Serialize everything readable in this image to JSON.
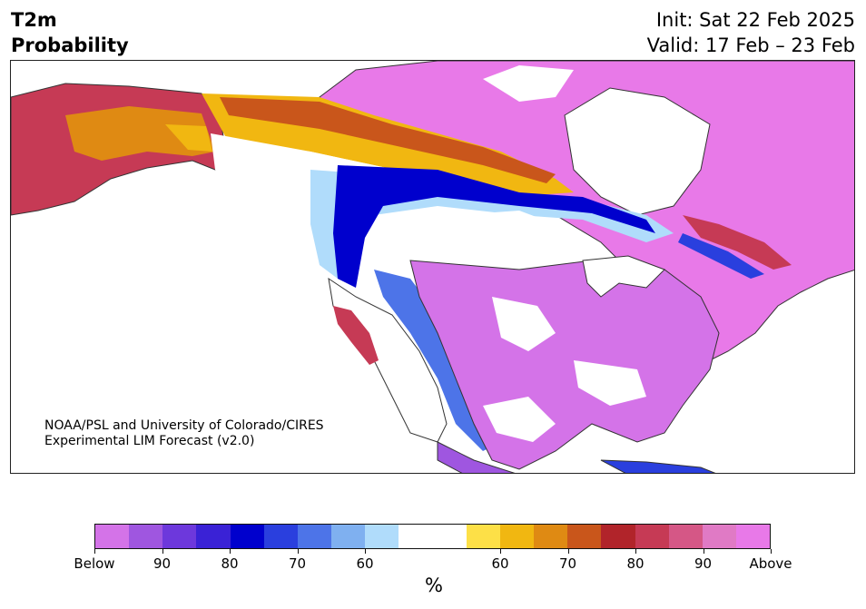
{
  "header": {
    "title_line1": "T2m",
    "title_line2": "Probability",
    "init_label": "Init: Sat 22 Feb 2025",
    "valid_label": "Valid: 17 Feb – 23 Feb"
  },
  "map": {
    "credit_line1": "NOAA/PSL and University of Colorado/CIRES",
    "credit_line2": "Experimental LIM Forecast (v2.0)",
    "colors": {
      "above_outer": "#e879e8",
      "below_outer": "#d37ee8",
      "land_outline": "#333333"
    }
  },
  "colorbar": {
    "colors": [
      "#d473e8",
      "#9f56e0",
      "#6d38dc",
      "#3a22d6",
      "#0000cd",
      "#2a3fde",
      "#4d74e8",
      "#7fb0f0",
      "#b0dcfb",
      "#ffffff",
      "#ffffff",
      "#fde047",
      "#f1b711",
      "#df8a13",
      "#c9561b",
      "#b1242a",
      "#c63a55",
      "#d55786",
      "#e07ac5",
      "#e879e8"
    ],
    "labels": [
      "Below",
      "90",
      "80",
      "70",
      "60",
      "60",
      "70",
      "80",
      "90",
      "Above"
    ],
    "unit": "%"
  }
}
